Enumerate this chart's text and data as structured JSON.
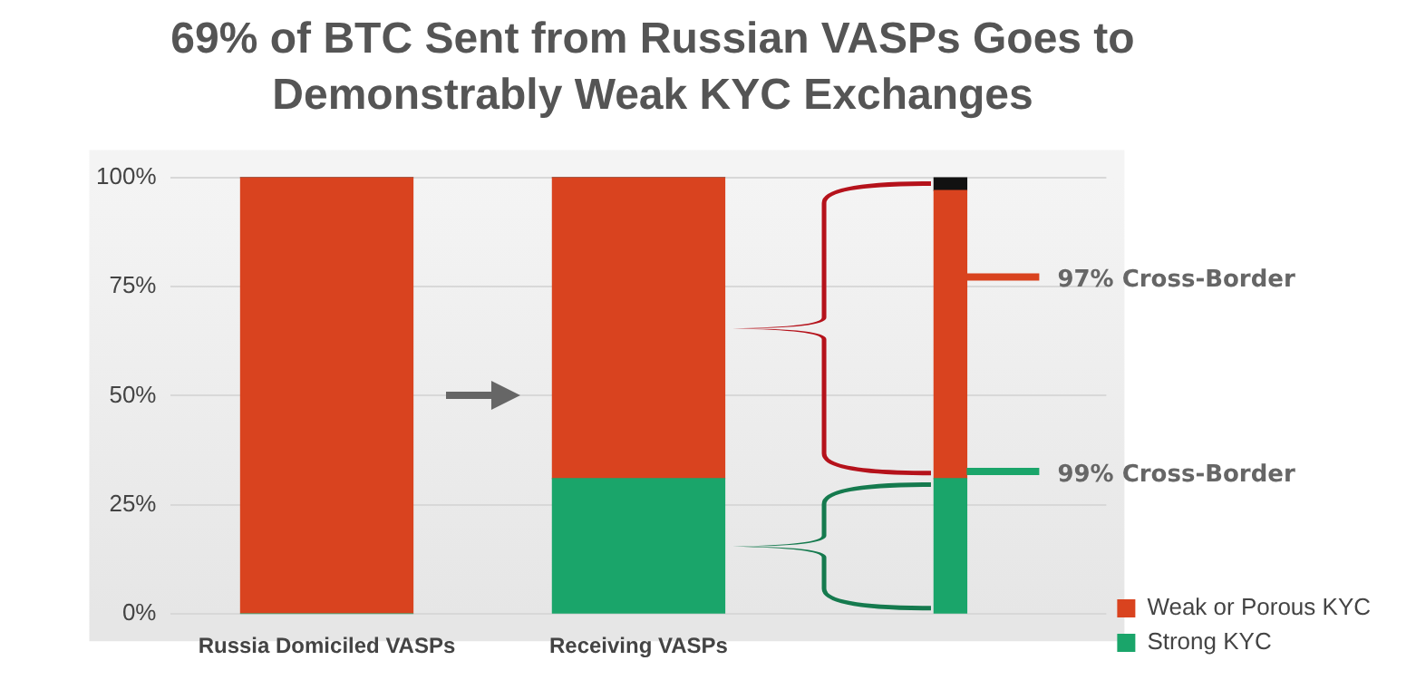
{
  "chart_data": {
    "type": "bar",
    "title": "69% of BTC Sent from Russian VASPs Goes to Demonstrably Weak KYC Exchanges",
    "categories": [
      "Russia Domiciled VASPs",
      "Receiving VASPs",
      null
    ],
    "stacked": true,
    "series": [
      {
        "name": "Strong KYC",
        "color": "#1aa56a",
        "values": [
          0,
          31,
          31
        ]
      },
      {
        "name": "Weak or Porous KYC",
        "color": "#d9431f",
        "values": [
          100,
          69,
          66
        ]
      },
      {
        "color": "#111111",
        "values": [
          0,
          0,
          3
        ]
      }
    ],
    "ylim": [
      0,
      100
    ],
    "yticks": [
      {
        "value": 0,
        "label": "0%"
      },
      {
        "value": 25,
        "label": "25%"
      },
      {
        "value": 50,
        "label": "50%"
      },
      {
        "value": 75,
        "label": "75%"
      },
      {
        "value": 100,
        "label": "100%"
      }
    ],
    "grid": "y",
    "legend": "bottom right",
    "annotations": [
      "97% Cross-Border",
      "99% Cross-Border"
    ]
  }
}
